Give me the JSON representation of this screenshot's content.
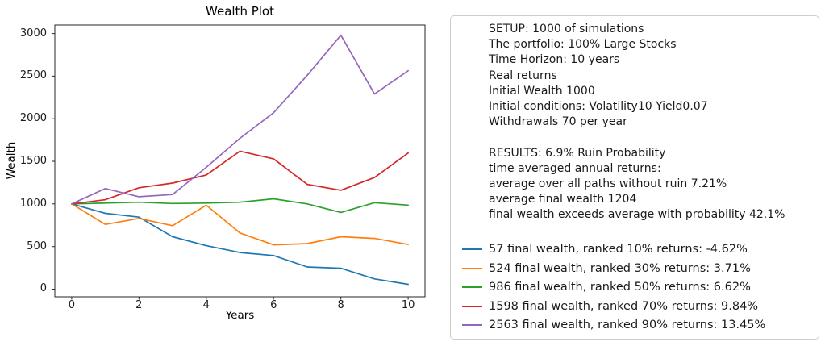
{
  "chart_data": {
    "type": "line",
    "title": "Wealth Plot",
    "xlabel": "Years",
    "ylabel": "Wealth",
    "x": [
      0,
      1,
      2,
      3,
      4,
      5,
      6,
      7,
      8,
      9,
      10
    ],
    "xlim": [
      -0.5,
      10.5
    ],
    "ylim": [
      -90,
      3100
    ],
    "xticks": [
      0,
      2,
      4,
      6,
      8,
      10
    ],
    "yticks": [
      0,
      500,
      1000,
      1500,
      2000,
      2500,
      3000
    ],
    "grid": false,
    "legend_position": "outside-right-bottom",
    "series": [
      {
        "name": "57 final wealth, ranked 10% returns: -4.62%",
        "color": "#1f77b4",
        "values": [
          1000,
          890,
          845,
          615,
          510,
          430,
          395,
          260,
          245,
          120,
          57
        ]
      },
      {
        "name": "524 final wealth, ranked 30% returns: 3.71%",
        "color": "#ff7f0e",
        "values": [
          1000,
          760,
          830,
          745,
          985,
          660,
          520,
          535,
          615,
          595,
          524
        ]
      },
      {
        "name": "986 final wealth, ranked 50% returns: 6.62%",
        "color": "#2ca02c",
        "values": [
          1000,
          1010,
          1020,
          1005,
          1010,
          1020,
          1060,
          1000,
          900,
          1015,
          986
        ]
      },
      {
        "name": "1598 final wealth, ranked 70% returns: 9.84%",
        "color": "#d62728",
        "values": [
          1000,
          1050,
          1190,
          1245,
          1340,
          1620,
          1530,
          1230,
          1160,
          1310,
          1598
        ]
      },
      {
        "name": "2563 final wealth, ranked 90% returns: 13.45%",
        "color": "#9467bd",
        "values": [
          1000,
          1180,
          1085,
          1110,
          1430,
          1770,
          2070,
          2510,
          2980,
          2290,
          2563
        ]
      }
    ],
    "axis_color": "#262626"
  },
  "info_panel": {
    "setup_lines": [
      "SETUP: 1000 of simulations",
      "The portfolio: 100% Large Stocks",
      "Time Horizon: 10 years",
      "Real returns",
      "Initial Wealth 1000",
      "Initial conditions: Volatility10 Yield0.07",
      "Withdrawals 70 per year"
    ],
    "results_lines": [
      "RESULTS: 6.9% Ruin Probability",
      "time averaged annual returns:",
      "average over all paths without ruin 7.21%",
      "average final wealth 1204",
      "final wealth exceeds average with probability 42.1%"
    ]
  }
}
